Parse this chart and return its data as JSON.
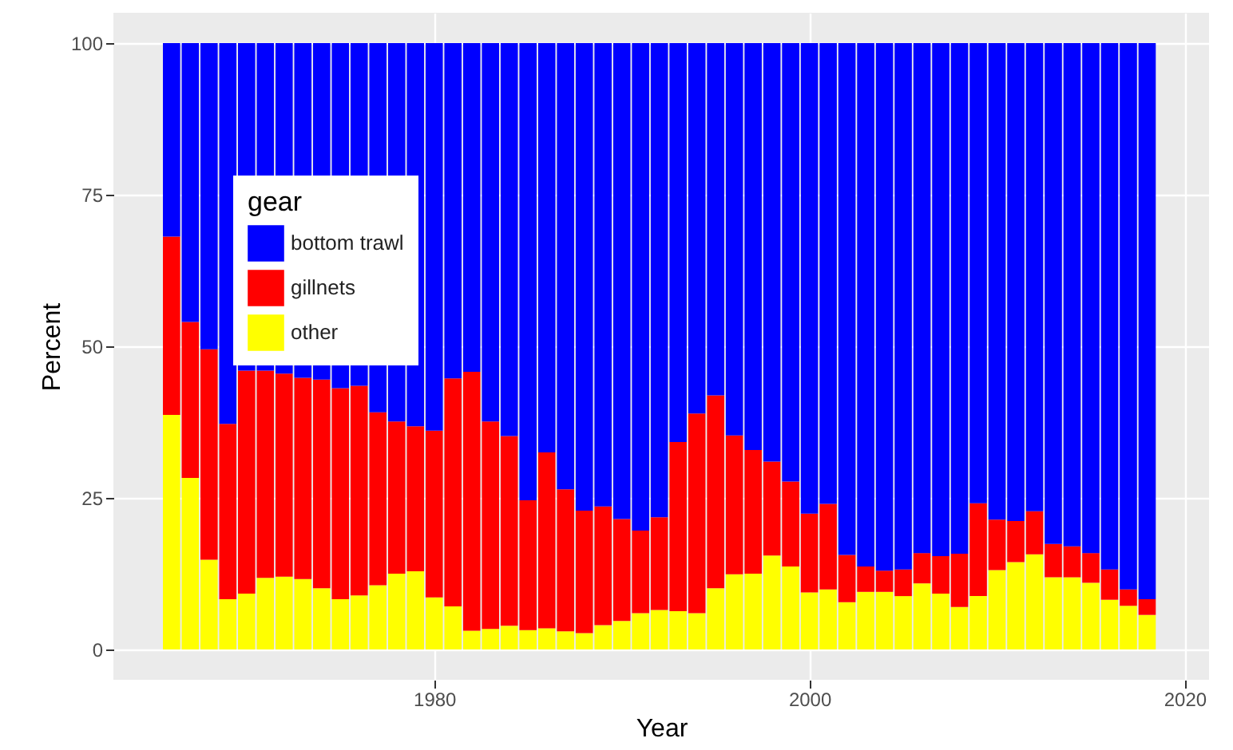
{
  "chart_data": {
    "type": "bar",
    "stacked": true,
    "xlabel": "Year",
    "ylabel": "Percent",
    "legend_title": "gear",
    "legend": "left",
    "x": [
      1966,
      1967,
      1968,
      1969,
      1970,
      1971,
      1972,
      1973,
      1974,
      1975,
      1976,
      1977,
      1978,
      1979,
      1980,
      1981,
      1982,
      1983,
      1984,
      1985,
      1986,
      1987,
      1988,
      1989,
      1990,
      1991,
      1992,
      1993,
      1994,
      1995,
      1996,
      1997,
      1998,
      1999,
      2000,
      2001,
      2002,
      2003,
      2004,
      2005,
      2006,
      2007,
      2008,
      2009,
      2010,
      2011,
      2012,
      2013,
      2014,
      2015,
      2016,
      2017,
      2018
    ],
    "series": [
      {
        "name": "other",
        "color": "#ffff00",
        "values": [
          38.7,
          28.3,
          14.8,
          8.3,
          9.2,
          11.8,
          12.0,
          11.6,
          10.1,
          8.3,
          8.9,
          10.6,
          12.5,
          12.9,
          8.6,
          7.1,
          3.1,
          3.4,
          3.9,
          3.2,
          3.5,
          3.0,
          2.7,
          4.0,
          4.7,
          6.0,
          6.5,
          6.3,
          6.0,
          10.1,
          12.4,
          12.5,
          15.5,
          13.7,
          9.4,
          9.9,
          7.8,
          9.5,
          9.5,
          8.8,
          10.9,
          9.2,
          7.0,
          8.8,
          13.1,
          14.4,
          15.7,
          11.9,
          11.9,
          11.0,
          8.2,
          7.2,
          5.7
        ]
      },
      {
        "name": "gillnets",
        "color": "#ff0000",
        "values": [
          29.4,
          25.7,
          34.7,
          28.9,
          36.8,
          34.2,
          33.5,
          33.2,
          34.4,
          34.8,
          34.6,
          28.5,
          25.1,
          23.9,
          27.5,
          37.6,
          42.7,
          34.2,
          31.3,
          21.4,
          29.0,
          23.4,
          20.2,
          19.6,
          16.8,
          13.6,
          15.3,
          27.9,
          32.9,
          31.8,
          22.9,
          20.4,
          15.5,
          14.0,
          13.0,
          14.1,
          7.8,
          4.2,
          3.5,
          4.4,
          5.0,
          6.2,
          8.8,
          15.3,
          8.3,
          6.8,
          7.1,
          5.5,
          5.1,
          4.9,
          5.0,
          2.7,
          2.6
        ]
      },
      {
        "name": "bottom trawl",
        "color": "#0000ff",
        "values": [
          31.9,
          46.0,
          50.5,
          62.8,
          54.0,
          54.0,
          54.5,
          55.2,
          55.5,
          56.9,
          56.5,
          60.9,
          62.4,
          63.2,
          63.9,
          55.3,
          54.2,
          62.4,
          64.8,
          75.4,
          67.5,
          73.6,
          77.1,
          76.4,
          78.5,
          80.4,
          78.2,
          65.8,
          61.1,
          58.1,
          64.7,
          67.1,
          69.0,
          72.3,
          77.6,
          76.0,
          84.4,
          86.3,
          87.0,
          86.8,
          84.1,
          84.6,
          84.2,
          75.9,
          78.6,
          78.8,
          77.2,
          82.6,
          83.0,
          84.1,
          86.8,
          90.1,
          91.7
        ]
      }
    ],
    "xlim": [
      1962.9,
      2021.3
    ],
    "xticks": [
      1980,
      2000,
      2020
    ],
    "ylim": [
      -5,
      105
    ],
    "yticks": [
      0,
      25,
      50,
      75,
      100
    ],
    "grid": true
  }
}
